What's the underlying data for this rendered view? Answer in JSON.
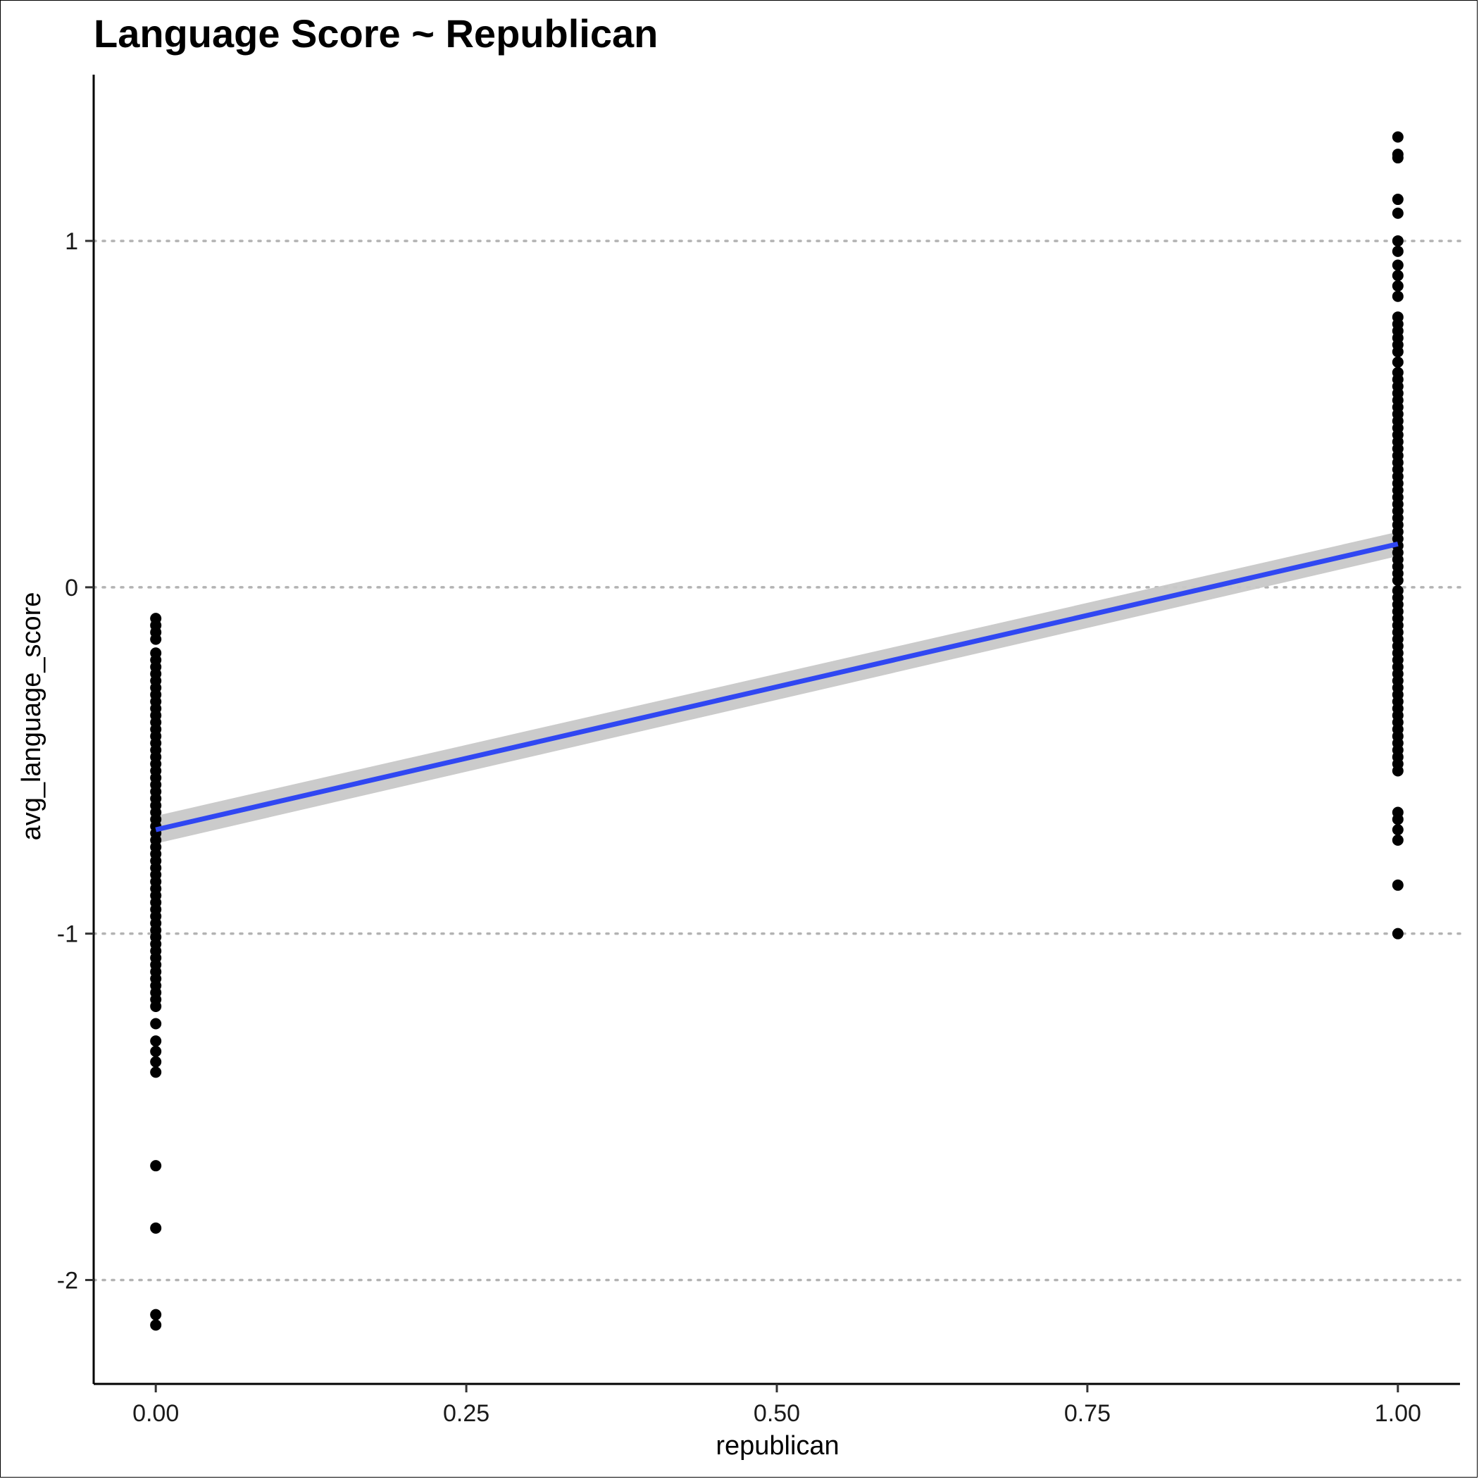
{
  "chart_data": {
    "type": "scatter",
    "title": "Language Score ~ Republican",
    "xlabel": "republican",
    "ylabel": "avg_language_score",
    "xlim": [
      -0.05,
      1.05
    ],
    "ylim": [
      -2.3,
      1.48
    ],
    "x_ticks": [
      0,
      0.25,
      0.5,
      0.75,
      1
    ],
    "x_tick_labels": [
      "0.00",
      "0.25",
      "0.50",
      "0.75",
      "1.00"
    ],
    "y_ticks": [
      -2,
      -1,
      0,
      1
    ],
    "y_tick_labels": [
      "-2",
      "-1",
      "0",
      "1"
    ],
    "grid": "horizontal dotted",
    "point_color": "#000000",
    "fit_line_color": "#3047f2",
    "ci_band_color": "#c8c8c8",
    "fit_line": {
      "x": [
        0,
        1
      ],
      "y": [
        -0.7,
        0.125
      ]
    },
    "ci_band": {
      "x": [
        0,
        1
      ],
      "lower": [
        -0.74,
        0.09
      ],
      "upper": [
        -0.66,
        0.16
      ]
    },
    "series": [
      {
        "x_value": 0,
        "values": [
          -0.09,
          -0.11,
          -0.13,
          -0.15,
          -0.19,
          -0.21,
          -0.23,
          -0.25,
          -0.27,
          -0.29,
          -0.31,
          -0.33,
          -0.35,
          -0.37,
          -0.39,
          -0.41,
          -0.43,
          -0.45,
          -0.47,
          -0.49,
          -0.51,
          -0.53,
          -0.55,
          -0.57,
          -0.59,
          -0.61,
          -0.63,
          -0.65,
          -0.67,
          -0.69,
          -0.71,
          -0.73,
          -0.75,
          -0.77,
          -0.79,
          -0.81,
          -0.83,
          -0.85,
          -0.87,
          -0.89,
          -0.91,
          -0.93,
          -0.95,
          -0.97,
          -0.99,
          -1.01,
          -1.03,
          -1.05,
          -1.07,
          -1.09,
          -1.11,
          -1.13,
          -1.15,
          -1.17,
          -1.19,
          -1.21,
          -1.26,
          -1.31,
          -1.34,
          -1.37,
          -1.4,
          -1.67,
          -1.85,
          -2.1,
          -2.13
        ]
      },
      {
        "x_value": 1,
        "values": [
          1.3,
          1.25,
          1.24,
          1.12,
          1.08,
          1.0,
          0.97,
          0.93,
          0.9,
          0.87,
          0.84,
          0.78,
          0.76,
          0.74,
          0.72,
          0.7,
          0.68,
          0.65,
          0.62,
          0.6,
          0.58,
          0.56,
          0.54,
          0.52,
          0.5,
          0.48,
          0.46,
          0.44,
          0.42,
          0.4,
          0.38,
          0.36,
          0.34,
          0.32,
          0.3,
          0.28,
          0.26,
          0.24,
          0.22,
          0.2,
          0.18,
          0.16,
          0.14,
          0.12,
          0.1,
          0.08,
          0.06,
          0.04,
          0.02,
          -0.01,
          -0.03,
          -0.05,
          -0.07,
          -0.09,
          -0.11,
          -0.13,
          -0.15,
          -0.17,
          -0.19,
          -0.21,
          -0.23,
          -0.25,
          -0.27,
          -0.29,
          -0.31,
          -0.33,
          -0.35,
          -0.37,
          -0.39,
          -0.41,
          -0.43,
          -0.45,
          -0.47,
          -0.49,
          -0.51,
          -0.53,
          -0.65,
          -0.67,
          -0.7,
          -0.73,
          -0.86,
          -1.0
        ]
      }
    ]
  }
}
